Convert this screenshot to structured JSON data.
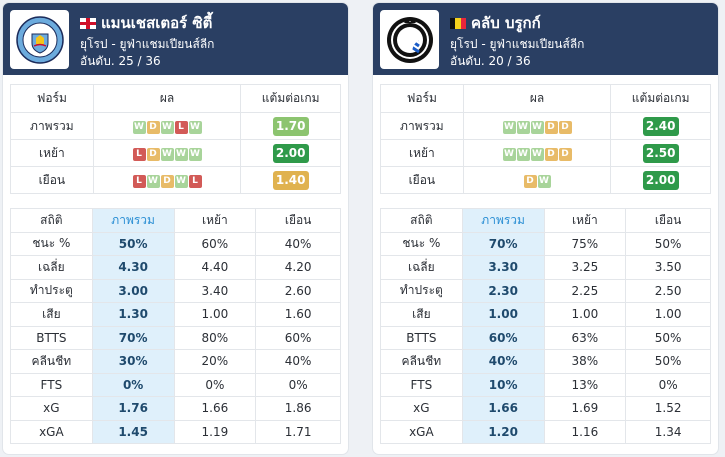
{
  "cards": [
    {
      "team": "แมนเชสเตอร์ ซิตี้",
      "competition": "ยุโรป - ยูฟ่าแชมเปียนส์ลีก",
      "rank": "อันดับ. 25 / 36",
      "logo_icon": "manchester-city-crest",
      "flag": "england",
      "form_headers": [
        "ฟอร์ม",
        "ผล",
        "แต้มต่อเกม"
      ],
      "form_rows": [
        {
          "label": "ภาพรวม",
          "results": [
            "W",
            "D",
            "W",
            "L",
            "W"
          ],
          "ppg": "1.70",
          "ppg_color": "#8cc46f"
        },
        {
          "label": "เหย้า",
          "results": [
            "L",
            "D",
            "W",
            "W",
            "W"
          ],
          "ppg": "2.00",
          "ppg_color": "#2f9a4a"
        },
        {
          "label": "เยือน",
          "results": [
            "L",
            "W",
            "D",
            "W",
            "L"
          ],
          "ppg": "1.40",
          "ppg_color": "#e0b24f"
        }
      ],
      "stats_headers": [
        "สถิติ",
        "ภาพรวม",
        "เหย้า",
        "เยือน"
      ],
      "stats_rows": [
        {
          "label": "ชนะ %",
          "overall": "50%",
          "home": "60%",
          "away": "40%"
        },
        {
          "label": "เฉลี่ย",
          "overall": "4.30",
          "home": "4.40",
          "away": "4.20"
        },
        {
          "label": "ทำประตู",
          "overall": "3.00",
          "home": "3.40",
          "away": "2.60"
        },
        {
          "label": "เสีย",
          "overall": "1.30",
          "home": "1.00",
          "away": "1.60"
        },
        {
          "label": "BTTS",
          "overall": "70%",
          "home": "80%",
          "away": "60%"
        },
        {
          "label": "คลีนชีท",
          "overall": "30%",
          "home": "20%",
          "away": "40%"
        },
        {
          "label": "FTS",
          "overall": "0%",
          "home": "0%",
          "away": "0%"
        },
        {
          "label": "xG",
          "overall": "1.76",
          "home": "1.66",
          "away": "1.86"
        },
        {
          "label": "xGA",
          "overall": "1.45",
          "home": "1.19",
          "away": "1.71"
        }
      ]
    },
    {
      "team": "คลับ บรูกก์",
      "competition": "ยุโรป - ยูฟ่าแชมเปียนส์ลีก",
      "rank": "อันดับ. 20 / 36",
      "logo_icon": "club-brugge-crest",
      "flag": "belgium",
      "form_headers": [
        "ฟอร์ม",
        "ผล",
        "แต้มต่อเกม"
      ],
      "form_rows": [
        {
          "label": "ภาพรวม",
          "results": [
            "W",
            "W",
            "W",
            "D",
            "D"
          ],
          "ppg": "2.40",
          "ppg_color": "#2f9a4a"
        },
        {
          "label": "เหย้า",
          "results": [
            "W",
            "W",
            "W",
            "D",
            "D"
          ],
          "ppg": "2.50",
          "ppg_color": "#2f9a4a"
        },
        {
          "label": "เยือน",
          "results": [
            "D",
            "W"
          ],
          "ppg": "2.00",
          "ppg_color": "#2f9a4a"
        }
      ],
      "stats_headers": [
        "สถิติ",
        "ภาพรวม",
        "เหย้า",
        "เยือน"
      ],
      "stats_rows": [
        {
          "label": "ชนะ %",
          "overall": "70%",
          "home": "75%",
          "away": "50%"
        },
        {
          "label": "เฉลี่ย",
          "overall": "3.30",
          "home": "3.25",
          "away": "3.50"
        },
        {
          "label": "ทำประตู",
          "overall": "2.30",
          "home": "2.25",
          "away": "2.50"
        },
        {
          "label": "เสีย",
          "overall": "1.00",
          "home": "1.00",
          "away": "1.00"
        },
        {
          "label": "BTTS",
          "overall": "60%",
          "home": "63%",
          "away": "50%"
        },
        {
          "label": "คลีนชีท",
          "overall": "40%",
          "home": "38%",
          "away": "50%"
        },
        {
          "label": "FTS",
          "overall": "10%",
          "home": "13%",
          "away": "0%"
        },
        {
          "label": "xG",
          "overall": "1.66",
          "home": "1.69",
          "away": "1.52"
        },
        {
          "label": "xGA",
          "overall": "1.20",
          "home": "1.16",
          "away": "1.34"
        }
      ]
    }
  ],
  "colors": {
    "header_bg": "#2a3f63",
    "highlight_col": "#dff0fb",
    "win": "#a8d49a",
    "draw": "#e8bb68",
    "loss": "#d25a57"
  }
}
